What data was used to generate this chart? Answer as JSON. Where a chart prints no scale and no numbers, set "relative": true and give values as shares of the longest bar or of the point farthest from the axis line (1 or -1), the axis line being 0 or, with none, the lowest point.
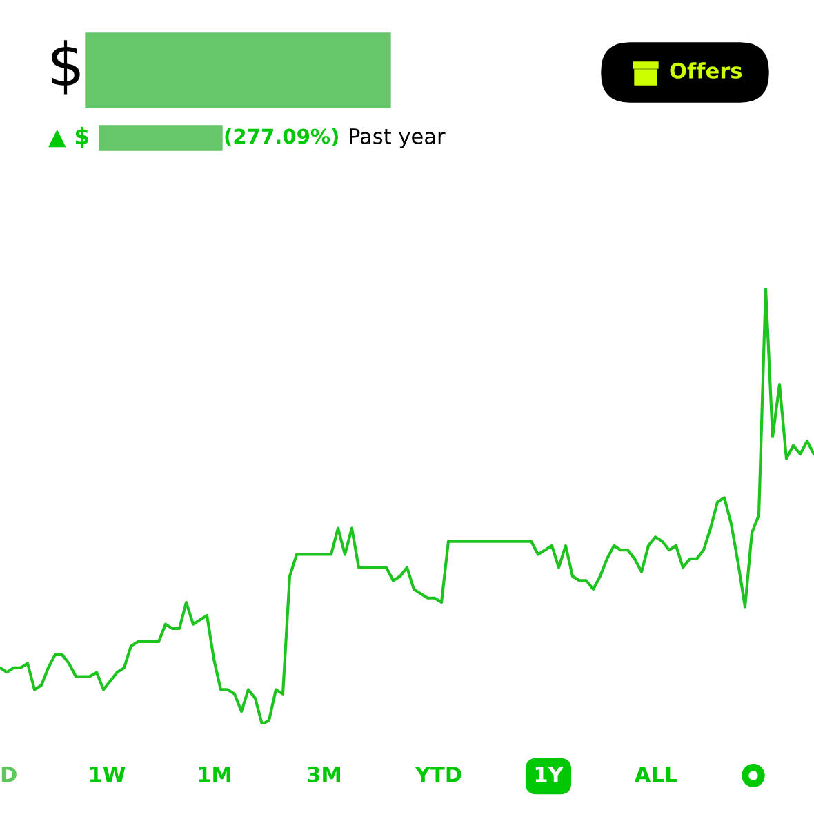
{
  "chart_data": {
    "type": "line",
    "title": "$",
    "subtitle": "▲ $",
    "annotations": [
      "(277.09%)",
      "Past year",
      "Offers",
      "D",
      "1W",
      "1M",
      "3M",
      "YTD",
      "1Y",
      "ALL"
    ],
    "relative": true,
    "categories": [
      null,
      null,
      null,
      null,
      null,
      null,
      null,
      null,
      null,
      null,
      null,
      null,
      null,
      null,
      null,
      null,
      null,
      null,
      null,
      null,
      null,
      null,
      null,
      null,
      null,
      null,
      null,
      null,
      null,
      null,
      null,
      null,
      null,
      null,
      null,
      null,
      null,
      null,
      null,
      null,
      null,
      null,
      null,
      null,
      null,
      null,
      null,
      null,
      null,
      null,
      null,
      null,
      null,
      null,
      null,
      null,
      null,
      null,
      null,
      null,
      null,
      null,
      null,
      null,
      null,
      null,
      null,
      null,
      null,
      null,
      null,
      null,
      null,
      null,
      null,
      null,
      null,
      null,
      null,
      null,
      null,
      null,
      null,
      null,
      null,
      null,
      null,
      null,
      null,
      null,
      null,
      null,
      null,
      null,
      null,
      null,
      null,
      null,
      null,
      null,
      null,
      null,
      null,
      null,
      null,
      null,
      null,
      null,
      null,
      null,
      null,
      null,
      null,
      null,
      null,
      null,
      null,
      null,
      null
    ],
    "series": [
      {
        "color": "#1fc31f",
        "values": [
          0.13,
          0.12,
          0.13,
          0.13,
          0.14,
          0.08,
          0.09,
          0.13,
          0.16,
          0.16,
          0.14,
          0.11,
          0.11,
          0.11,
          0.12,
          0.08,
          0.1,
          0.12,
          0.13,
          0.18,
          0.19,
          0.19,
          0.19,
          0.19,
          0.23,
          0.22,
          0.22,
          0.28,
          0.23,
          0.24,
          0.25,
          0.15,
          0.08,
          0.08,
          0.07,
          0.03,
          0.08,
          0.06,
          0,
          0.01,
          0.08,
          0.07,
          0.34,
          0.39,
          0.39,
          0.39,
          0.39,
          0.39,
          0.39,
          0.45,
          0.39,
          0.45,
          0.36,
          0.36,
          0.36,
          0.36,
          0.36,
          0.33,
          0.34,
          0.36,
          0.31,
          0.3,
          0.29,
          0.29,
          0.28,
          0.42,
          0.42,
          0.42,
          0.42,
          0.42,
          0.42,
          0.42,
          0.42,
          0.42,
          0.42,
          0.42,
          0.42,
          0.42,
          0.39,
          0.4,
          0.41,
          0.36,
          0.41,
          0.34,
          0.33,
          0.33,
          0.31,
          0.34,
          0.38,
          0.41,
          0.4,
          0.4,
          0.38,
          0.35,
          0.41,
          0.43,
          0.42,
          0.4,
          0.41,
          0.36,
          0.38,
          0.38,
          0.4,
          0.45,
          0.51,
          0.52,
          0.46,
          0.37,
          0.27,
          0.44,
          0.48,
          1.0,
          0.66,
          0.78,
          0.61,
          0.64,
          0.62,
          0.65,
          0.62
        ]
      }
    ],
    "grid": false,
    "legend": false
  }
}
